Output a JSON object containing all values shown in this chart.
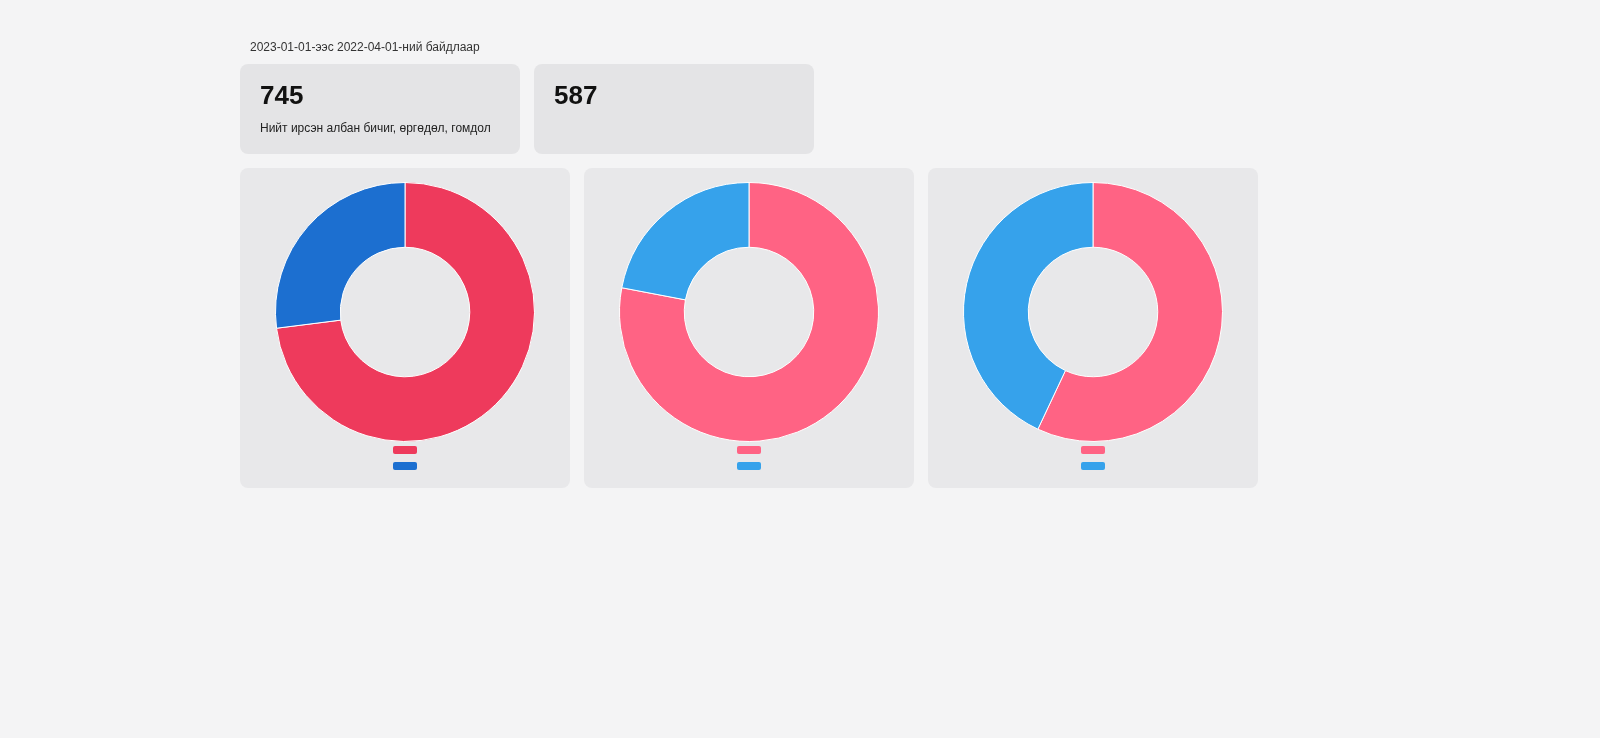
{
  "chart_data": [
    {
      "type": "other",
      "title": "745",
      "subtitle": "Нийт ирсэн албан бичиг, өргөдөл, гомдол",
      "annotations": [
        "2023-01-01-ээс 2022-04-01-ний байдлаар"
      ]
    },
    {
      "type": "other",
      "title": "587"
    },
    {
      "type": "donut",
      "categories": [
        null,
        null
      ],
      "values": [
        73,
        27
      ],
      "colors": [
        "#ee3a5c",
        "#1c6fd0"
      ]
    },
    {
      "type": "donut",
      "categories": [
        null,
        null
      ],
      "values": [
        78,
        22
      ],
      "colors": [
        "#ff6384",
        "#36a2eb"
      ]
    },
    {
      "type": "donut",
      "categories": [
        null,
        null
      ],
      "values": [
        57,
        43
      ],
      "colors": [
        "#ff6384",
        "#36a2eb"
      ]
    }
  ]
}
